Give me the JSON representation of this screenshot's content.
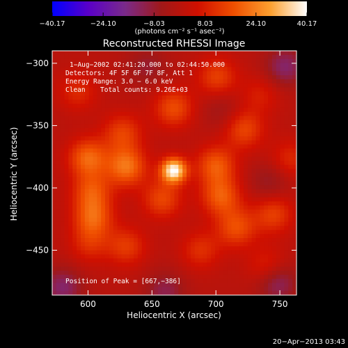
{
  "chart_data": {
    "type": "heatmap",
    "title": "Reconstructed RHESSI Image",
    "xlabel": "Heliocentric X (arcsec)",
    "ylabel": "Heliocentric Y (arcsec)",
    "xlim": [
      572,
      763
    ],
    "ylim": [
      -486,
      -290
    ],
    "x_ticks": [
      {
        "value": 600,
        "label": "600"
      },
      {
        "value": 650,
        "label": "650"
      },
      {
        "value": 700,
        "label": "700"
      },
      {
        "value": 750,
        "label": "750"
      }
    ],
    "y_ticks": [
      {
        "value": -300,
        "label": "−300"
      },
      {
        "value": -350,
        "label": "−350"
      },
      {
        "value": -400,
        "label": "−400"
      },
      {
        "value": -450,
        "label": "−450"
      }
    ],
    "colorbar": {
      "min": -40.17,
      "max": 40.17,
      "tick_labels": [
        "−40.17",
        "−24.10",
        "−8.03",
        "8.03",
        "24.10",
        "40.17"
      ],
      "units_label": "(photons cm⁻² s⁻¹ asec⁻²)",
      "colors": [
        "#0000ff",
        "#5a00c8",
        "#7a2a8a",
        "#a01818",
        "#d01000",
        "#f05000",
        "#fca030",
        "#ffffff"
      ]
    },
    "annotations": {
      "time_range": "1−Aug−2002 02:41:20.000 to 02:44:50.000",
      "detectors": "Detectors: 4F 5F 6F 7F 8F, Att 1",
      "energy_range": "Energy Range: 3.0 − 6.0 keV",
      "algorithm": "Clean",
      "total_counts": "Total counts: 9.26E+03",
      "peak_position": "Position of Peak = [667,−386]"
    },
    "peak": {
      "x": 667,
      "y": -386
    },
    "sources": [
      {
        "x": 667,
        "y": -386,
        "amplitude": 40.17
      },
      {
        "x": 630,
        "y": -383,
        "amplitude": 22
      },
      {
        "x": 600,
        "y": -376,
        "amplitude": 20
      },
      {
        "x": 700,
        "y": -382,
        "amplitude": 18
      },
      {
        "x": 627,
        "y": -356,
        "amplitude": 14
      },
      {
        "x": 667,
        "y": -336,
        "amplitude": 16
      },
      {
        "x": 722,
        "y": -353,
        "amplitude": 15
      },
      {
        "x": 735,
        "y": -325,
        "amplitude": 8
      },
      {
        "x": 603,
        "y": -403,
        "amplitude": 16
      },
      {
        "x": 604,
        "y": -424,
        "amplitude": 18
      },
      {
        "x": 658,
        "y": -409,
        "amplitude": 15
      },
      {
        "x": 704,
        "y": -407,
        "amplitude": 18
      },
      {
        "x": 716,
        "y": -432,
        "amplitude": 16
      },
      {
        "x": 745,
        "y": -421,
        "amplitude": 14
      },
      {
        "x": 688,
        "y": -450,
        "amplitude": 11
      },
      {
        "x": 630,
        "y": -447,
        "amplitude": 13
      },
      {
        "x": 601,
        "y": -445,
        "amplitude": 10
      },
      {
        "x": 701,
        "y": -311,
        "amplitude": 14
      },
      {
        "x": 758,
        "y": -377,
        "amplitude": 10
      },
      {
        "x": 740,
        "y": -463,
        "amplitude": 10
      },
      {
        "x": 592,
        "y": -323,
        "amplitude": 10
      }
    ],
    "negatives": [
      {
        "x": 580,
        "y": -480,
        "amplitude": -14
      },
      {
        "x": 660,
        "y": -483,
        "amplitude": -11
      },
      {
        "x": 748,
        "y": -476,
        "amplitude": -14
      },
      {
        "x": 754,
        "y": -303,
        "amplitude": -14
      },
      {
        "x": 742,
        "y": -395,
        "amplitude": -8
      },
      {
        "x": 646,
        "y": -303,
        "amplitude": -8
      },
      {
        "x": 705,
        "y": -338,
        "amplitude": -6
      }
    ]
  },
  "footer": {
    "timestamp": "20−Apr−2013 03:43"
  }
}
